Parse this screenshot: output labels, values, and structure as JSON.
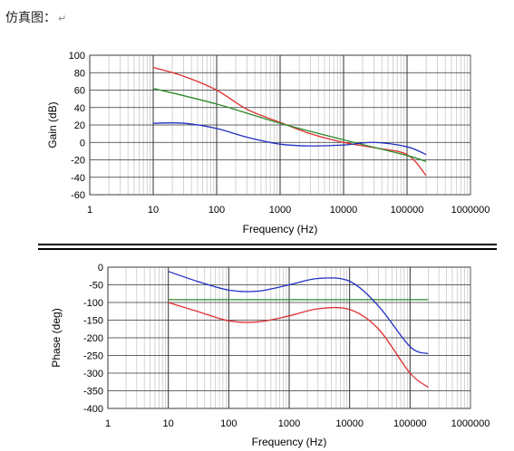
{
  "caption": {
    "text": "仿真图：",
    "mark": "↵"
  },
  "chart_data": [
    {
      "type": "line",
      "xlabel": "Frequency (Hz)",
      "ylabel": "Gain (dB)",
      "xscale": "log",
      "xlim": [
        1,
        1000000
      ],
      "ylim": [
        -60,
        100
      ],
      "xticks": [
        "1",
        "10",
        "100",
        "1000",
        "10000",
        "100000",
        "1000000"
      ],
      "yticks": [
        "100",
        "80",
        "60",
        "40",
        "20",
        "0",
        "-20",
        "-40",
        "-60"
      ],
      "grid": true,
      "series": [
        {
          "color": "#e03030",
          "x": [
            10,
            30,
            100,
            300,
            1000,
            3000,
            10000,
            30000,
            100000,
            200000
          ],
          "y": [
            86,
            76,
            60,
            38,
            23,
            10,
            0,
            -6,
            -14,
            -38
          ]
        },
        {
          "color": "#2a8a2a",
          "x": [
            10,
            100,
            1000,
            10000,
            100000,
            200000
          ],
          "y": [
            62,
            44,
            22,
            3,
            -15,
            -22
          ]
        },
        {
          "color": "#2030c0",
          "x": [
            10,
            30,
            100,
            300,
            1000,
            3000,
            10000,
            30000,
            100000,
            200000
          ],
          "y": [
            22,
            22,
            16,
            6,
            -2,
            -4,
            -3,
            0,
            -5,
            -14
          ]
        }
      ]
    },
    {
      "type": "line",
      "xlabel": "Frequency (Hz)",
      "ylabel": "Phase (deg)",
      "xscale": "log",
      "xlim": [
        1,
        1000000
      ],
      "ylim": [
        -400,
        0
      ],
      "xticks": [
        "1",
        "10",
        "100",
        "1000",
        "10000",
        "100000",
        "1000000"
      ],
      "yticks": [
        "0",
        "-50",
        "-100",
        "-150",
        "-200",
        "-250",
        "-300",
        "-350",
        "-400"
      ],
      "grid": true,
      "series": [
        {
          "color": "#e03030",
          "x": [
            10,
            30,
            100,
            300,
            1000,
            3000,
            10000,
            30000,
            100000,
            200000
          ],
          "y": [
            -100,
            -125,
            -152,
            -155,
            -138,
            -118,
            -120,
            -175,
            -300,
            -340
          ]
        },
        {
          "color": "#2a8a2a",
          "x": [
            10,
            200000
          ],
          "y": [
            -92,
            -92
          ]
        },
        {
          "color": "#2030c0",
          "x": [
            10,
            30,
            100,
            300,
            1000,
            3000,
            10000,
            30000,
            100000,
            200000
          ],
          "y": [
            -12,
            -40,
            -65,
            -68,
            -50,
            -32,
            -40,
            -110,
            -225,
            -245
          ]
        }
      ]
    }
  ]
}
